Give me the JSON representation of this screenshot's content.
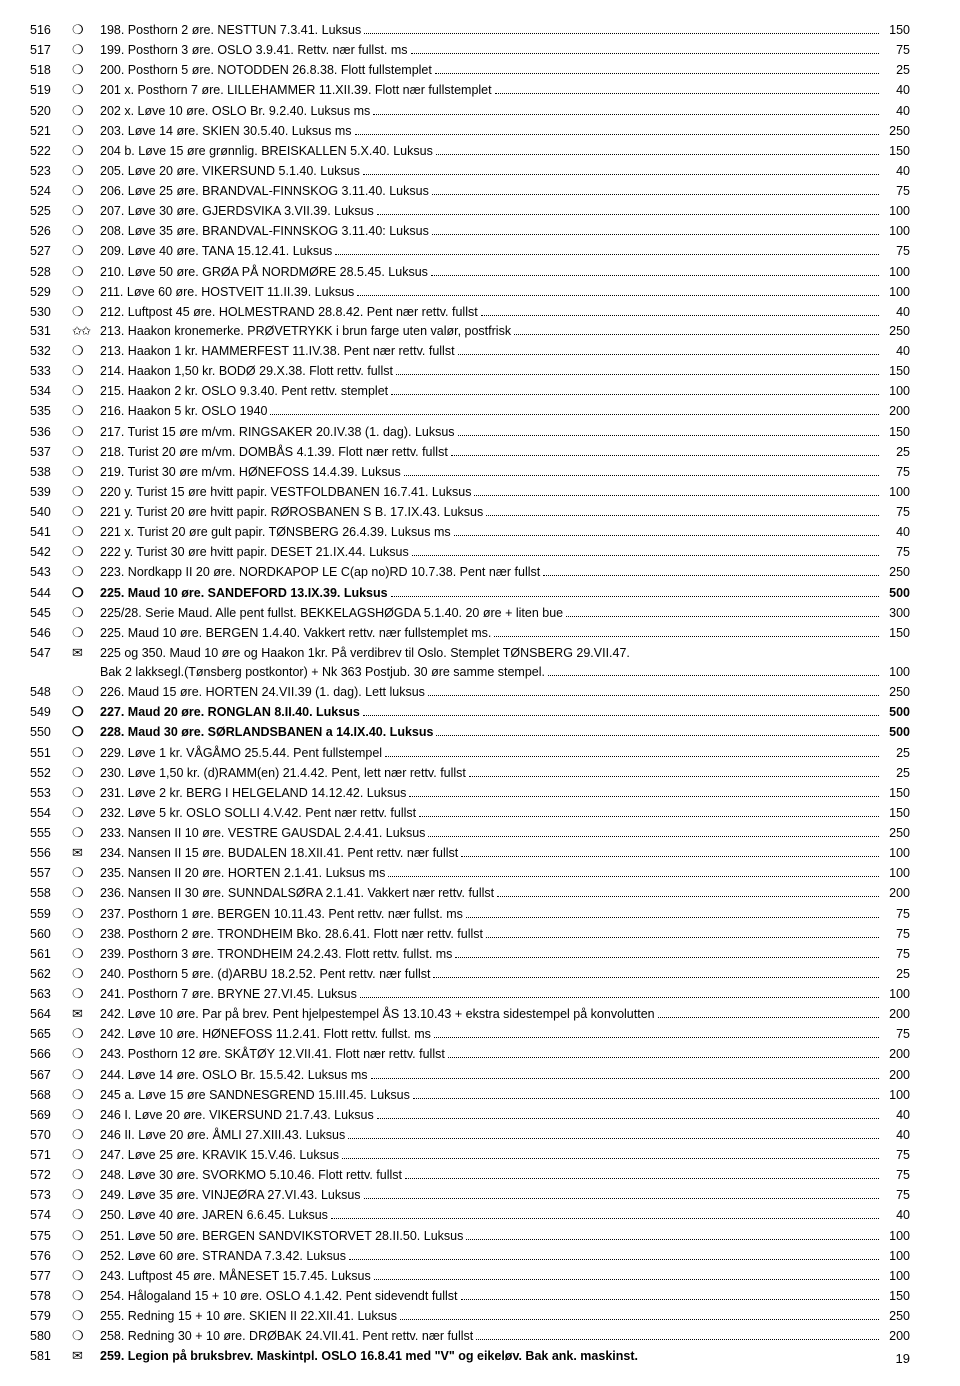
{
  "page_number": "19",
  "symbols": {
    "circle": "❍",
    "circleBold": "❍",
    "star": "✩✩",
    "envelope": "✉"
  },
  "rows": [
    {
      "lot": "516",
      "sym": "circle",
      "desc": "198. Posthorn 2 øre. NESTTUN 7.3.41. Luksus",
      "price": "150"
    },
    {
      "lot": "517",
      "sym": "circle",
      "desc": "199. Posthorn 3 øre. OSLO 3.9.41. Rettv. nær fullst. ms",
      "price": "75"
    },
    {
      "lot": "518",
      "sym": "circle",
      "desc": "200. Posthorn 5 øre. NOTODDEN 26.8.38. Flott fullstemplet",
      "price": "25"
    },
    {
      "lot": "519",
      "sym": "circle",
      "desc": "201 x. Posthorn 7 øre. LILLEHAMMER 11.XII.39. Flott nær fullstemplet",
      "price": "40"
    },
    {
      "lot": "520",
      "sym": "circle",
      "desc": "202 x. Løve 10 øre. OSLO Br. 9.2.40. Luksus ms",
      "price": "40"
    },
    {
      "lot": "521",
      "sym": "circle",
      "desc": "203. Løve 14 øre. SKIEN 30.5.40. Luksus ms",
      "price": "250"
    },
    {
      "lot": "522",
      "sym": "circle",
      "desc": "204 b. Løve 15 øre grønnlig. BREISKALLEN 5.X.40. Luksus",
      "price": "150"
    },
    {
      "lot": "523",
      "sym": "circle",
      "desc": "205. Løve 20 øre. VIKERSUND 5.1.40. Luksus",
      "price": "40"
    },
    {
      "lot": "524",
      "sym": "circle",
      "desc": "206. Løve 25 øre. BRANDVAL-FINNSKOG 3.11.40. Luksus",
      "price": "75"
    },
    {
      "lot": "525",
      "sym": "circle",
      "desc": "207. Løve 30 øre. GJERDSVIKA 3.VII.39. Luksus",
      "price": "100"
    },
    {
      "lot": "526",
      "sym": "circle",
      "desc": "208. Løve 35 øre. BRANDVAL-FINNSKOG 3.11.40: Luksus",
      "price": "100"
    },
    {
      "lot": "527",
      "sym": "circle",
      "desc": "209. Løve 40 øre. TANA 15.12.41. Luksus",
      "price": "75"
    },
    {
      "lot": "528",
      "sym": "circle",
      "desc": "210. Løve 50 øre. GRØA PÅ NORDMØRE 28.5.45. Luksus",
      "price": "100"
    },
    {
      "lot": "529",
      "sym": "circle",
      "desc": "211. Løve 60 øre. HOSTVEIT 11.II.39. Luksus",
      "price": "100"
    },
    {
      "lot": "530",
      "sym": "circle",
      "desc": "212. Luftpost 45 øre. HOLMESTRAND 28.8.42. Pent nær rettv. fullst",
      "price": "40"
    },
    {
      "lot": "531",
      "sym": "star",
      "desc": "213. Haakon kronemerke. PRØVETRYKK i brun farge uten valør, postfrisk",
      "price": "250"
    },
    {
      "lot": "532",
      "sym": "circle",
      "desc": "213. Haakon 1 kr. HAMMERFEST 11.IV.38. Pent nær rettv. fullst",
      "price": "40"
    },
    {
      "lot": "533",
      "sym": "circle",
      "desc": "214. Haakon 1,50 kr. BODØ 29.X.38. Flott rettv. fullst",
      "price": "150"
    },
    {
      "lot": "534",
      "sym": "circle",
      "desc": "215. Haakon 2 kr. OSLO 9.3.40. Pent rettv. stemplet",
      "price": "100"
    },
    {
      "lot": "535",
      "sym": "circle",
      "desc": "216. Haakon 5 kr. OSLO 1940",
      "price": "200"
    },
    {
      "lot": "536",
      "sym": "circle",
      "desc": "217. Turist 15 øre m/vm. RINGSAKER 20.IV.38 (1. dag). Luksus",
      "price": "150"
    },
    {
      "lot": "537",
      "sym": "circle",
      "desc": "218. Turist 20 øre m/vm. DOMBÅS 4.1.39. Flott nær rettv. fullst",
      "price": "25"
    },
    {
      "lot": "538",
      "sym": "circle",
      "desc": "219. Turist 30 øre m/vm. HØNEFOSS 14.4.39. Luksus",
      "price": "75"
    },
    {
      "lot": "539",
      "sym": "circle",
      "desc": "220 y. Turist 15 øre hvitt papir. VESTFOLDBANEN 16.7.41. Luksus",
      "price": "100"
    },
    {
      "lot": "540",
      "sym": "circle",
      "desc": "221 y. Turist 20 øre hvitt papir. RØROSBANEN S B. 17.IX.43. Luksus",
      "price": "75"
    },
    {
      "lot": "541",
      "sym": "circle",
      "desc": "221 x. Turist 20 øre gult papir. TØNSBERG 26.4.39. Luksus ms",
      "price": "40"
    },
    {
      "lot": "542",
      "sym": "circle",
      "desc": "222 y. Turist 30 øre hvitt papir. DESET 21.IX.44. Luksus",
      "price": "75"
    },
    {
      "lot": "543",
      "sym": "circle",
      "desc": "223. Nordkapp II 20 øre. NORDKAPOP LE C(ap no)RD 10.7.38. Pent nær fullst",
      "price": "250"
    },
    {
      "lot": "544",
      "sym": "circleBold",
      "bold": true,
      "desc": "225. Maud 10 øre. SANDEFORD 13.IX.39. Luksus",
      "price": "500"
    },
    {
      "lot": "545",
      "sym": "circle",
      "desc": "225/28. Serie Maud. Alle pent fullst. BEKKELAGSHØGDA 5.1.40. 20 øre + liten bue",
      "price": "300"
    },
    {
      "lot": "546",
      "sym": "circle",
      "desc": "225. Maud 10 øre. BERGEN 1.4.40. Vakkert rettv. nær fullstemplet ms.",
      "price": "150"
    },
    {
      "lot": "547",
      "sym": "envelope",
      "desc": "225 og 350. Maud 10 øre og Haakon 1kr. På verdibrev til Oslo. Stemplet TØNSBERG 29.VII.47.",
      "cont": "Bak 2 lakksegl.(Tønsberg postkontor) + Nk 363 Postjub. 30 øre samme stempel.",
      "price": "100"
    },
    {
      "lot": "548",
      "sym": "circle",
      "desc": "226. Maud 15 øre. HORTEN 24.VII.39 (1. dag). Lett luksus",
      "price": "250"
    },
    {
      "lot": "549",
      "sym": "circleBold",
      "bold": true,
      "desc": "227. Maud 20 øre. RONGLAN 8.II.40. Luksus",
      "price": "500"
    },
    {
      "lot": "550",
      "sym": "circleBold",
      "bold": true,
      "desc": "228. Maud 30 øre. SØRLANDSBANEN a 14.IX.40. Luksus",
      "price": "500"
    },
    {
      "lot": "551",
      "sym": "circle",
      "desc": "229. Løve 1 kr. VÅGÅMO 25.5.44. Pent fullstempel",
      "price": "25"
    },
    {
      "lot": "552",
      "sym": "circle",
      "desc": "230. Løve 1,50 kr. (d)RAMM(en) 21.4.42. Pent, lett nær rettv. fullst",
      "price": "25"
    },
    {
      "lot": "553",
      "sym": "circle",
      "desc": "231. Løve 2 kr. BERG I HELGELAND 14.12.42. Luksus",
      "price": "150"
    },
    {
      "lot": "554",
      "sym": "circle",
      "desc": "232. Løve 5 kr. OSLO SOLLI 4.V.42. Pent nær rettv. fullst",
      "price": "150"
    },
    {
      "lot": "555",
      "sym": "circle",
      "desc": "233. Nansen II 10 øre. VESTRE GAUSDAL 2.4.41. Luksus",
      "price": "250"
    },
    {
      "lot": "556",
      "sym": "envelope",
      "desc": "234. Nansen II 15 øre. BUDALEN 18.XII.41. Pent rettv. nær fullst",
      "price": "100"
    },
    {
      "lot": "557",
      "sym": "circle",
      "desc": "235. Nansen II 20 øre. HORTEN 2.1.41. Luksus ms",
      "price": "100"
    },
    {
      "lot": "558",
      "sym": "circle",
      "desc": "236. Nansen II 30 øre. SUNNDALSØRA 2.1.41. Vakkert nær rettv. fullst",
      "price": "200"
    },
    {
      "lot": "559",
      "sym": "circle",
      "desc": "237. Posthorn 1 øre. BERGEN 10.11.43. Pent rettv. nær fullst. ms",
      "price": "75"
    },
    {
      "lot": "560",
      "sym": "circle",
      "desc": "238. Posthorn 2 øre. TRONDHEIM Bko. 28.6.41. Flott nær rettv. fullst",
      "price": "75"
    },
    {
      "lot": "561",
      "sym": "circle",
      "desc": "239. Posthorn 3 øre. TRONDHEIM 24.2.43. Flott rettv. fullst. ms",
      "price": "75"
    },
    {
      "lot": "562",
      "sym": "circle",
      "desc": "240. Posthorn 5 øre. (d)ARBU 18.2.52. Pent rettv. nær fullst",
      "price": "25"
    },
    {
      "lot": "563",
      "sym": "circle",
      "desc": "241. Posthorn 7 øre. BRYNE 27.VI.45. Luksus",
      "price": "100"
    },
    {
      "lot": "564",
      "sym": "envelope",
      "desc": "242. Løve 10 øre. Par på brev. Pent hjelpestempel ÅS 13.10.43 + ekstra sidestempel på konvolutten",
      "price": "200"
    },
    {
      "lot": "565",
      "sym": "circle",
      "desc": "242. Løve 10 øre. HØNEFOSS 11.2.41. Flott rettv. fullst. ms",
      "price": "75"
    },
    {
      "lot": "566",
      "sym": "circle",
      "desc": "243. Posthorn 12 øre. SKÅTØY 12.VII.41. Flott nær rettv. fullst",
      "price": "200"
    },
    {
      "lot": "567",
      "sym": "circle",
      "desc": "244. Løve 14 øre. OSLO Br. 15.5.42. Luksus ms",
      "price": "200"
    },
    {
      "lot": "568",
      "sym": "circle",
      "desc": "245 a. Løve 15 øre SANDNESGREND 15.III.45. Luksus",
      "price": "100"
    },
    {
      "lot": "569",
      "sym": "circle",
      "desc": "246 I. Løve 20 øre. VIKERSUND 21.7.43. Luksus",
      "price": "40"
    },
    {
      "lot": "570",
      "sym": "circle",
      "desc": "246 II. Løve 20 øre. ÅMLI 27.XIII.43. Luksus",
      "price": "40"
    },
    {
      "lot": "571",
      "sym": "circle",
      "desc": "247. Løve 25 øre. KRAVIK 15.V.46. Luksus",
      "price": "75"
    },
    {
      "lot": "572",
      "sym": "circle",
      "desc": "248. Løve 30 øre. SVORKMO 5.10.46. Flott rettv. fullst",
      "price": "75"
    },
    {
      "lot": "573",
      "sym": "circle",
      "desc": "249. Løve 35 øre. VINJEØRA 27.VI.43. Luksus",
      "price": "75"
    },
    {
      "lot": "574",
      "sym": "circle",
      "desc": "250. Løve 40 øre. JAREN 6.6.45. Luksus",
      "price": "40"
    },
    {
      "lot": "575",
      "sym": "circle",
      "desc": "251. Løve 50 øre. BERGEN SANDVIKSTORVET 28.II.50. Luksus",
      "price": "100"
    },
    {
      "lot": "576",
      "sym": "circle",
      "desc": "252. Løve 60 øre. STRANDA 7.3.42. Luksus",
      "price": "100"
    },
    {
      "lot": "577",
      "sym": "circle",
      "desc": "243. Luftpost 45 øre. MÅNESET 15.7.45. Luksus",
      "price": "100"
    },
    {
      "lot": "578",
      "sym": "circle",
      "desc": "254. Hålogaland 15 + 10 øre. OSLO 4.1.42. Pent sidevendt fullst",
      "price": "150"
    },
    {
      "lot": "579",
      "sym": "circle",
      "desc": "255. Redning 15 + 10 øre. SKIEN II 22.XII.41. Luksus",
      "price": "250"
    },
    {
      "lot": "580",
      "sym": "circle",
      "desc": "258. Redning 30 + 10 øre. DRØBAK 24.VII.41. Pent rettv. nær fullst",
      "price": "200"
    },
    {
      "lot": "581",
      "sym": "envelope",
      "bold": true,
      "desc": "259. Legion på bruksbrev. Maskintpl. OSLO 16.8.41 med \"V\" og eikeløv. Bak ank. maskinst.",
      "noprice": true
    }
  ]
}
